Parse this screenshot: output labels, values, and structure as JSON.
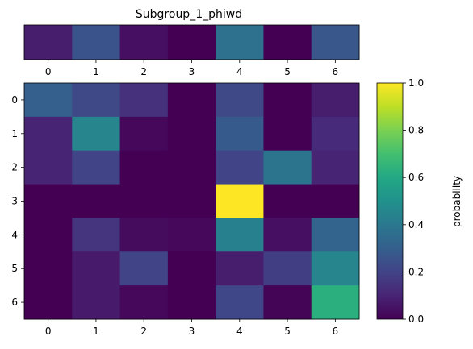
{
  "chart_data": [
    {
      "type": "heatmap",
      "title": "Subgroup_1_phiwd",
      "x_ticks": [
        "0",
        "1",
        "2",
        "3",
        "4",
        "5",
        "6"
      ],
      "rows": [
        [
          0.08,
          0.26,
          0.04,
          0.0,
          0.37,
          0.0,
          0.27
        ]
      ]
    },
    {
      "type": "heatmap",
      "x_ticks": [
        "0",
        "1",
        "2",
        "3",
        "4",
        "5",
        "6"
      ],
      "y_ticks": [
        "0",
        "1",
        "2",
        "3",
        "4",
        "5",
        "6"
      ],
      "rows": [
        [
          0.3,
          0.22,
          0.14,
          0.0,
          0.22,
          0.0,
          0.08
        ],
        [
          0.1,
          0.45,
          0.02,
          0.0,
          0.28,
          0.0,
          0.12
        ],
        [
          0.1,
          0.2,
          0.0,
          0.0,
          0.2,
          0.38,
          0.1
        ],
        [
          0.0,
          0.0,
          0.0,
          0.0,
          1.0,
          0.0,
          0.0
        ],
        [
          0.0,
          0.15,
          0.03,
          0.02,
          0.43,
          0.04,
          0.32
        ],
        [
          0.0,
          0.07,
          0.2,
          0.0,
          0.08,
          0.18,
          0.45
        ],
        [
          0.0,
          0.07,
          0.02,
          0.0,
          0.21,
          0.01,
          0.63
        ]
      ]
    }
  ],
  "colorbar": {
    "label": "probability",
    "min": 0.0,
    "max": 1.0,
    "ticks": [
      "0.0",
      "0.2",
      "0.4",
      "0.6",
      "0.8",
      "1.0"
    ],
    "colormap": "viridis"
  }
}
